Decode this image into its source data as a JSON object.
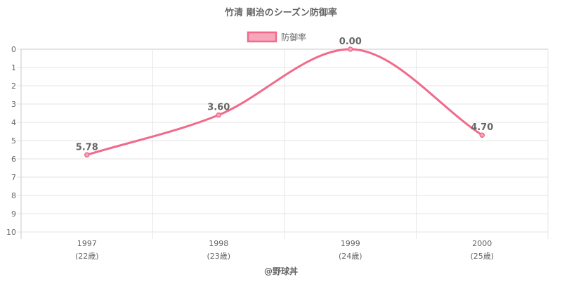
{
  "chart_data": {
    "type": "line",
    "title": "竹清 剛治のシーズン防御率",
    "legend": {
      "label": "防御率",
      "position": "top"
    },
    "categories": [
      {
        "year": "1997",
        "age": "(22歳)"
      },
      {
        "year": "1998",
        "age": "(23歳)"
      },
      {
        "year": "1999",
        "age": "(24歳)"
      },
      {
        "year": "2000",
        "age": "(25歳)"
      }
    ],
    "series": [
      {
        "name": "防御率",
        "values": [
          5.78,
          3.6,
          0.0,
          4.7
        ],
        "data_labels": [
          "5.78",
          "3.60",
          "0.00",
          "4.70"
        ],
        "color": "#f06a8b"
      }
    ],
    "y_axis": {
      "min": 0,
      "max": 10,
      "step": 1,
      "reversed": true
    },
    "xlabel": "",
    "ylabel": "",
    "grid": true,
    "credit": "@野球丼"
  }
}
